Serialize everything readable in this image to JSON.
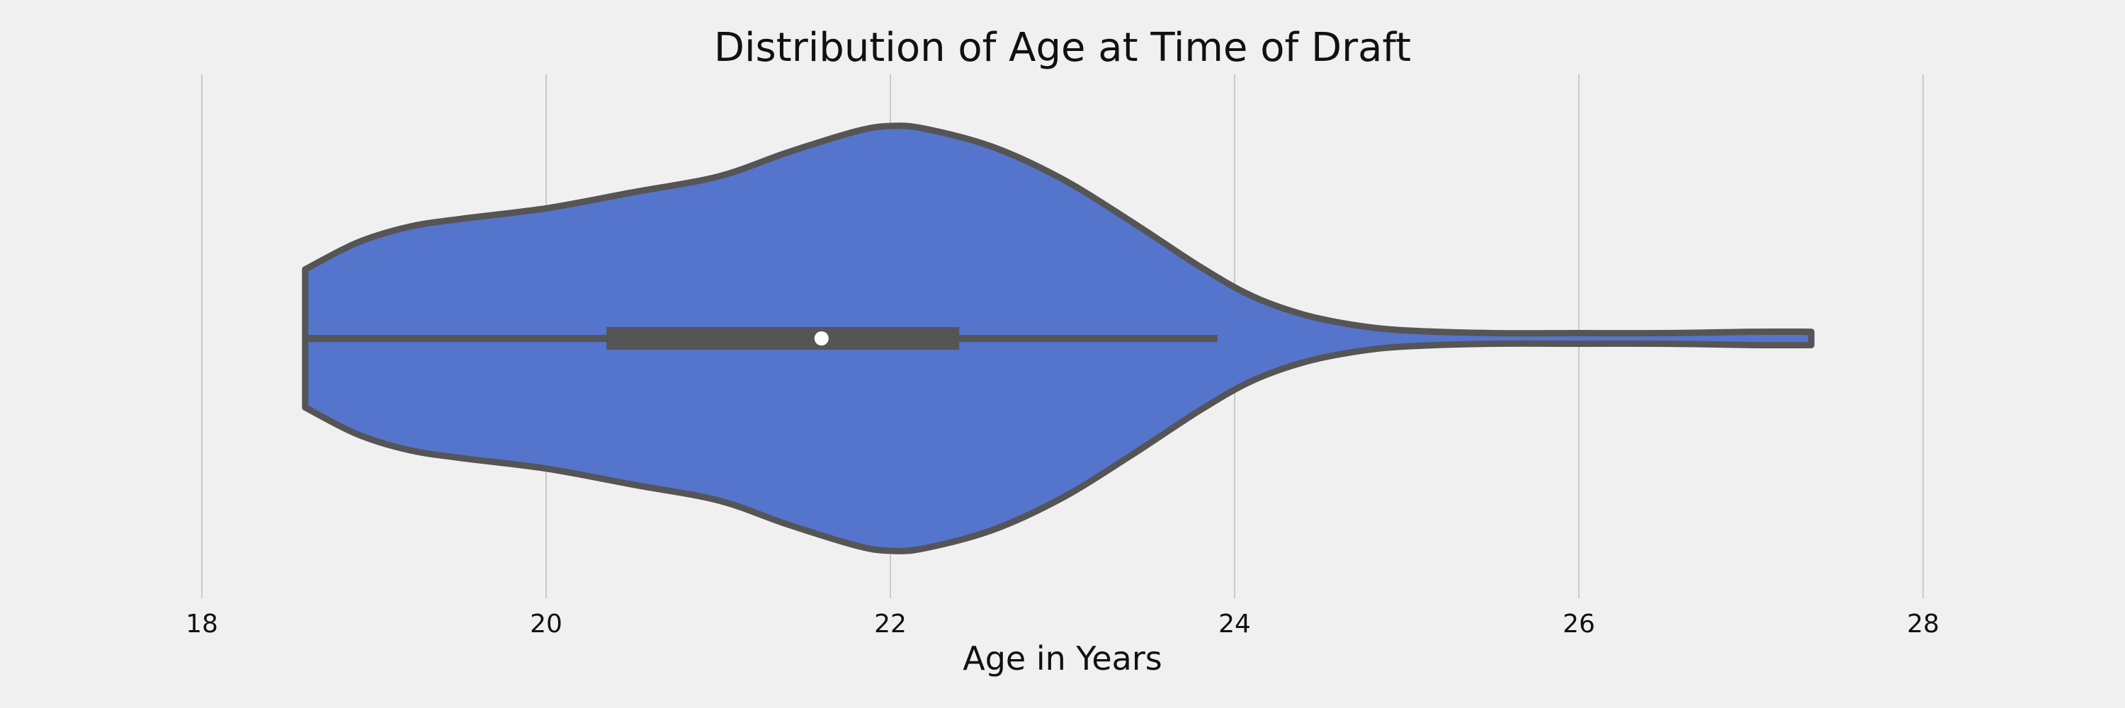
{
  "chart_data": {
    "type": "violin",
    "title": "Distribution of Age at Time of Draft",
    "xlabel": "Age in Years",
    "ylabel": "",
    "xlim": [
      18,
      28
    ],
    "xticks": [
      18,
      20,
      22,
      24,
      26,
      28
    ],
    "xtick_labels": [
      "18",
      "20",
      "22",
      "24",
      "26",
      "28"
    ],
    "grid": "vertical",
    "orientation": "horizontal",
    "colors": {
      "fill": "#5574cc",
      "edge": "#555555",
      "median": "#ffffff",
      "background": "#f0f0f0",
      "grid": "#cbcbcb"
    },
    "density": {
      "x": [
        18.6,
        18.9,
        19.2,
        19.5,
        20.0,
        20.5,
        21.0,
        21.4,
        21.8,
        22.0,
        22.2,
        22.6,
        23.0,
        23.4,
        23.8,
        24.1,
        24.4,
        24.7,
        25.0,
        25.5,
        26.0,
        26.5,
        27.0,
        27.35
      ],
      "half_width": [
        0.26,
        0.36,
        0.42,
        0.45,
        0.49,
        0.55,
        0.61,
        0.7,
        0.78,
        0.8,
        0.79,
        0.72,
        0.6,
        0.44,
        0.27,
        0.16,
        0.09,
        0.05,
        0.03,
        0.02,
        0.02,
        0.02,
        0.025,
        0.025
      ]
    },
    "box": {
      "whisker_low": 18.6,
      "q1": 20.35,
      "median": 21.6,
      "q3": 22.4,
      "whisker_high": 23.9
    }
  }
}
